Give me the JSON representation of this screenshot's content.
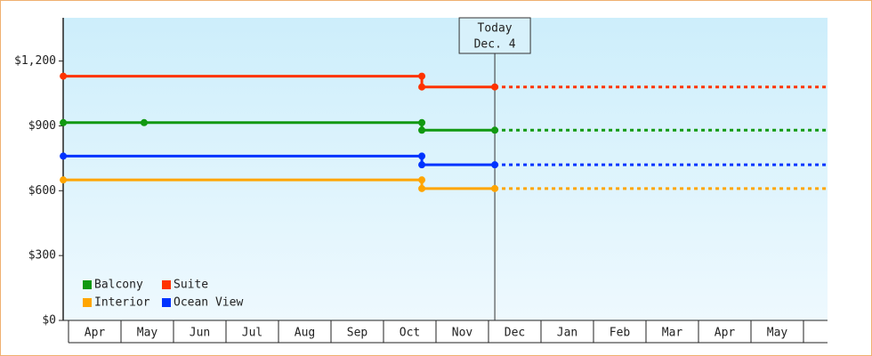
{
  "chart_data": {
    "type": "step-line",
    "annotation": {
      "x": 8.12,
      "lines": [
        "Today",
        "Dec. 4"
      ]
    },
    "xlim": [
      -0.1,
      14.46
    ],
    "xticks": [
      {
        "value": 0,
        "label": "Apr"
      },
      {
        "value": 1,
        "label": "May"
      },
      {
        "value": 2,
        "label": "Jun"
      },
      {
        "value": 3,
        "label": "Jul"
      },
      {
        "value": 4,
        "label": "Aug"
      },
      {
        "value": 5,
        "label": "Sep"
      },
      {
        "value": 6,
        "label": "Oct"
      },
      {
        "value": 7,
        "label": "Nov"
      },
      {
        "value": 8,
        "label": "Dec"
      },
      {
        "value": 9,
        "label": "Jan"
      },
      {
        "value": 10,
        "label": "Feb"
      },
      {
        "value": 11,
        "label": "Mar"
      },
      {
        "value": 12,
        "label": "Apr"
      },
      {
        "value": 13,
        "label": "May"
      }
    ],
    "ylim": [
      0,
      1400
    ],
    "yticks": [
      {
        "value": 0,
        "label": "$0"
      },
      {
        "value": 300,
        "label": "$300"
      },
      {
        "value": 600,
        "label": "$600"
      },
      {
        "value": 900,
        "label": "$900"
      },
      {
        "value": 1200,
        "label": "$1,200"
      }
    ],
    "legend": "lower left",
    "series": [
      {
        "name": "Balcony",
        "color": "#119911",
        "x": [
          -0.1,
          1.44,
          6.73,
          6.73,
          8.12
        ],
        "values": [
          915,
          915,
          915,
          880,
          880
        ]
      },
      {
        "name": "Suite",
        "color": "#ff3300",
        "x": [
          -0.1,
          6.73,
          6.73,
          8.12
        ],
        "values": [
          1130,
          1130,
          1080,
          1080
        ]
      },
      {
        "name": "Interior",
        "color": "#ffa500",
        "x": [
          -0.1,
          6.73,
          6.73,
          8.12
        ],
        "values": [
          650,
          650,
          610,
          610
        ]
      },
      {
        "name": "Ocean View",
        "color": "#0033ff",
        "x": [
          -0.1,
          6.73,
          6.73,
          8.12
        ],
        "values": [
          760,
          760,
          720,
          720
        ]
      }
    ]
  }
}
